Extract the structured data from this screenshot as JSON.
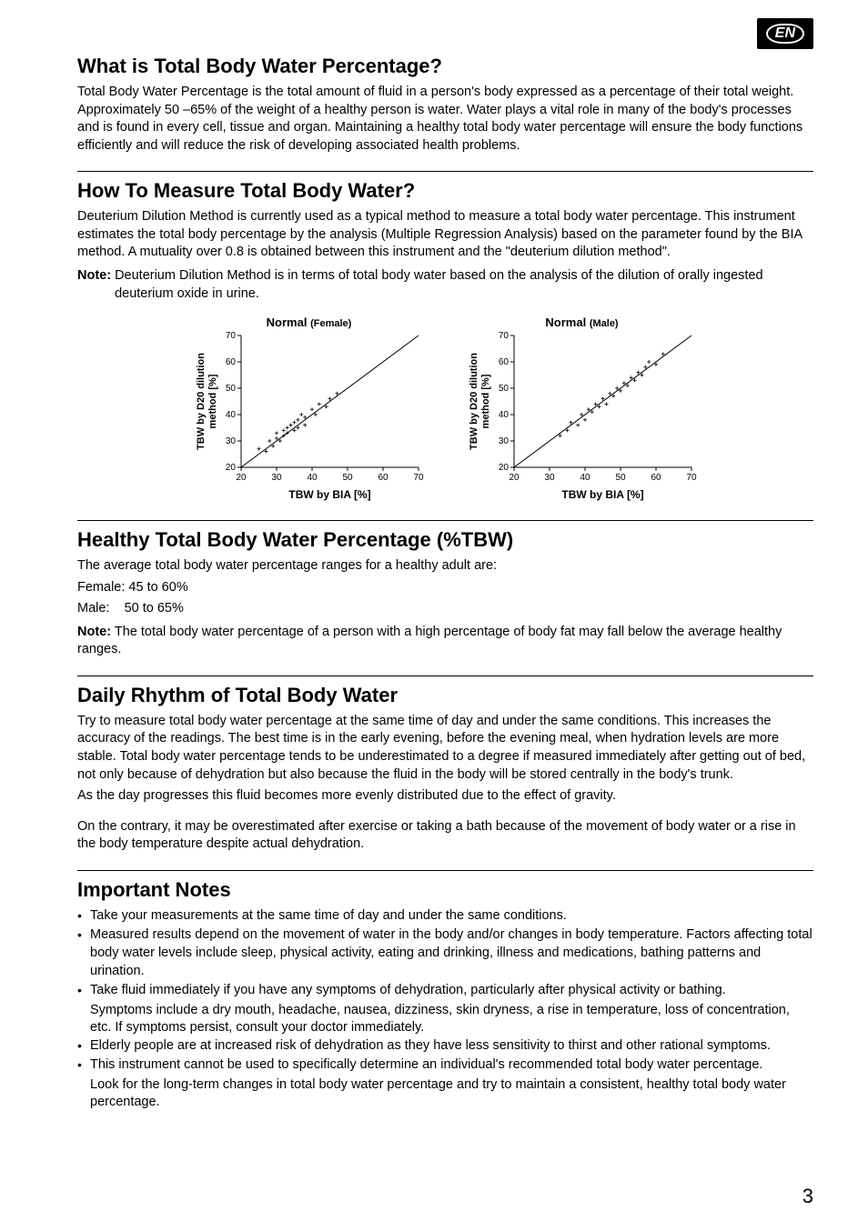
{
  "lang_badge": "EN",
  "page_number": "3",
  "sections": {
    "s1": {
      "title": "What is Total Body Water Percentage?",
      "body": "Total Body Water Percentage is the total amount of fluid in a person's body expressed as a percentage of their total weight. Approximately 50 –65% of the weight of a healthy person is water. Water plays a vital role in many of the body's processes and is found in every cell, tissue and organ. Maintaining a healthy total body water percentage will ensure the body functions efficiently and will reduce the risk of developing associated health problems."
    },
    "s2": {
      "title": "How To Measure Total Body Water?",
      "body": "Deuterium Dilution Method is currently used as a typical method to measure a total body water percentage. This instrument estimates the total body percentage by the analysis (Multiple Regression Analysis) based on the parameter found by the BIA method. A mutuality over 0.8 is obtained between this instrument and the \"deuterium dilution method\".",
      "note_label": "Note:",
      "note_text": "Deuterium Dilution Method is in terms of total body water based on the analysis of the dilution of orally ingested deuterium oxide in urine."
    },
    "charts": {
      "female": {
        "title_main": "Normal",
        "title_sub": "(Female)",
        "y_label": "TBW by D20 dilution method [%]",
        "x_label": "TBW by BIA [%]",
        "x_ticks": [
          20,
          30,
          40,
          50,
          60,
          70
        ],
        "y_ticks": [
          20,
          30,
          40,
          50,
          60,
          70
        ],
        "xlim": [
          20,
          70
        ],
        "ylim": [
          20,
          70
        ],
        "line_color": "#000",
        "point_color": "#000",
        "points": [
          [
            25,
            27
          ],
          [
            27,
            26
          ],
          [
            28,
            30
          ],
          [
            29,
            28
          ],
          [
            30,
            31
          ],
          [
            30,
            33
          ],
          [
            31,
            30
          ],
          [
            32,
            32
          ],
          [
            32,
            34
          ],
          [
            33,
            33
          ],
          [
            33,
            35
          ],
          [
            34,
            36
          ],
          [
            35,
            34
          ],
          [
            35,
            37
          ],
          [
            36,
            35
          ],
          [
            36,
            38
          ],
          [
            37,
            40
          ],
          [
            38,
            36
          ],
          [
            38,
            39
          ],
          [
            40,
            42
          ],
          [
            41,
            40
          ],
          [
            42,
            44
          ],
          [
            44,
            43
          ],
          [
            45,
            46
          ],
          [
            47,
            48
          ]
        ]
      },
      "male": {
        "title_main": "Normal",
        "title_sub": "(Male)",
        "y_label": "TBW by D20 dilution method [%]",
        "x_label": "TBW by BIA [%]",
        "x_ticks": [
          20,
          30,
          40,
          50,
          60,
          70
        ],
        "y_ticks": [
          20,
          30,
          40,
          50,
          60,
          70
        ],
        "xlim": [
          20,
          70
        ],
        "ylim": [
          20,
          70
        ],
        "line_color": "#000",
        "point_color": "#000",
        "points": [
          [
            33,
            32
          ],
          [
            35,
            34
          ],
          [
            36,
            37
          ],
          [
            38,
            36
          ],
          [
            39,
            40
          ],
          [
            40,
            38
          ],
          [
            41,
            42
          ],
          [
            42,
            41
          ],
          [
            43,
            44
          ],
          [
            44,
            43
          ],
          [
            45,
            46
          ],
          [
            46,
            44
          ],
          [
            47,
            48
          ],
          [
            48,
            47
          ],
          [
            49,
            50
          ],
          [
            50,
            49
          ],
          [
            51,
            52
          ],
          [
            52,
            51
          ],
          [
            53,
            54
          ],
          [
            54,
            53
          ],
          [
            55,
            56
          ],
          [
            56,
            55
          ],
          [
            57,
            58
          ],
          [
            58,
            60
          ],
          [
            60,
            59
          ],
          [
            62,
            63
          ]
        ]
      }
    },
    "s3": {
      "title": "Healthy Total Body Water Percentage (%TBW)",
      "body": "The average total body water percentage ranges for a healthy adult are:",
      "female_line": "Female: 45 to 60%",
      "male_line": "Male:    50 to 65%",
      "note_label": "Note:",
      "note_text": "The total body water percentage of a person with a high percentage of body fat may fall below the average healthy ranges."
    },
    "s4": {
      "title": "Daily Rhythm of Total Body Water",
      "p1": "Try to measure total body water percentage at the same time of day and under the same conditions. This increases the accuracy of the readings. The best time is in the early evening, before the evening meal, when hydration levels are more stable. Total body water percentage tends to be underestimated to a degree if measured immediately after getting out of bed, not only because of dehydration but also because the fluid in the body will be stored centrally in the body's trunk.",
      "p2": "As the day progresses this fluid becomes more evenly distributed due to the effect of gravity.",
      "p3": "On the contrary, it may be overestimated after exercise or taking a bath because of the movement of body water or a rise in the body temperature despite actual dehydration."
    },
    "s5": {
      "title": "Important Notes",
      "bullets": [
        "Take your measurements at the same time of day and under the same conditions.",
        "Measured results depend on the movement of water in the body and/or changes in body temperature. Factors affecting total body water levels include sleep, physical activity, eating and drinking, illness and medications, bathing patterns and urination.",
        "Take fluid immediately if you have any symptoms of dehydration, particularly after physical activity or bathing.",
        "Elderly people are at increased risk of dehydration as they have less sensitivity to thirst and other rational symptoms.",
        "This instrument cannot be used to specifically determine an individual's recommended total body water percentage."
      ],
      "cont3": "Symptoms include a dry mouth, headache, nausea, dizziness, skin dryness, a rise in temperature, loss of concentration, etc. If symptoms persist, consult your doctor immediately.",
      "cont5": "Look for the long-term changes in total body water percentage and try to maintain a consistent, healthy total body water percentage."
    }
  }
}
